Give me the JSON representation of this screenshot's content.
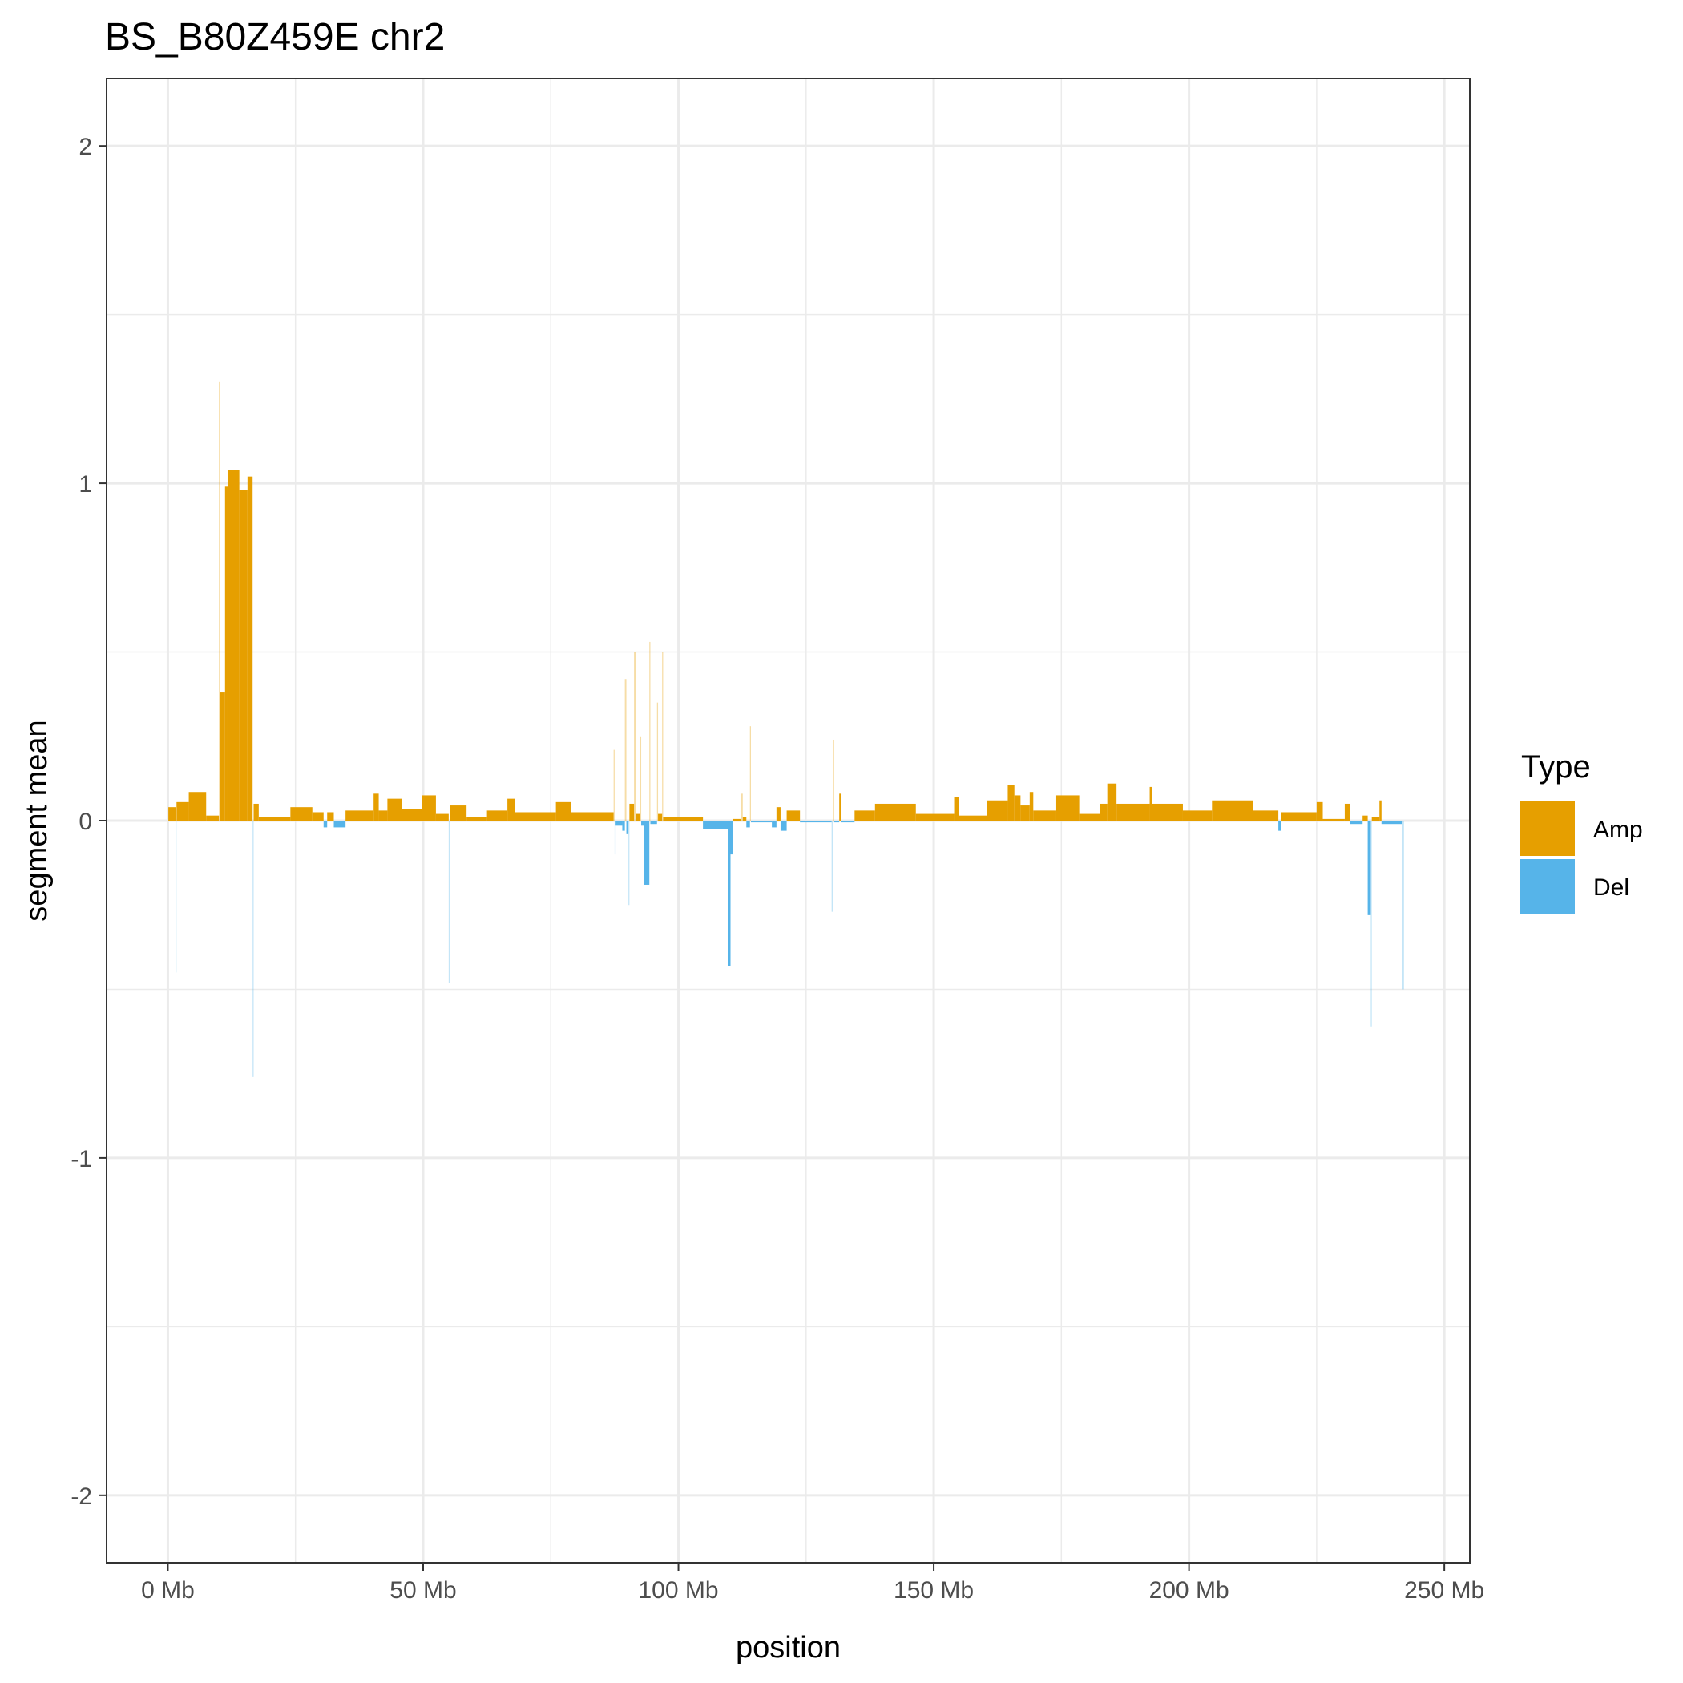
{
  "chart_data": {
    "type": "bar",
    "title": "BS_B80Z459E chr2",
    "xlabel": "position",
    "ylabel": "segment mean",
    "xlim": [
      -12,
      255
    ],
    "ylim": [
      -2.2,
      2.2
    ],
    "x_ticks": [
      0,
      50,
      100,
      150,
      200,
      250
    ],
    "x_tick_labels": [
      "0 Mb",
      "50 Mb",
      "100 Mb",
      "150 Mb",
      "200 Mb",
      "250 Mb"
    ],
    "y_ticks": [
      -2,
      -1,
      0,
      1,
      2
    ],
    "y_tick_labels": [
      "-2",
      "-1",
      "0",
      "1",
      "2"
    ],
    "grid": true,
    "legend": {
      "title": "Type",
      "position": "right",
      "items": [
        {
          "label": "Amp",
          "color": "#E69F00"
        },
        {
          "label": "Del",
          "color": "#56B4E9"
        }
      ]
    },
    "colors": {
      "Amp": "#E69F00",
      "Del": "#56B4E9"
    },
    "segments_note_units": "start and end in Mb, value = segment mean",
    "segments": [
      {
        "start": 0.1,
        "end": 1.5,
        "value": 0.04,
        "type": "Amp"
      },
      {
        "start": 1.5,
        "end": 1.7,
        "value": -0.45,
        "type": "Del"
      },
      {
        "start": 1.7,
        "end": 4.1,
        "value": 0.055,
        "type": "Amp"
      },
      {
        "start": 4.1,
        "end": 7.5,
        "value": 0.085,
        "type": "Amp"
      },
      {
        "start": 7.5,
        "end": 10.0,
        "value": 0.015,
        "type": "Amp"
      },
      {
        "start": 10.0,
        "end": 10.2,
        "value": 1.3,
        "type": "Amp"
      },
      {
        "start": 10.2,
        "end": 11.2,
        "value": 0.38,
        "type": "Amp"
      },
      {
        "start": 11.2,
        "end": 11.7,
        "value": 0.99,
        "type": "Amp"
      },
      {
        "start": 11.7,
        "end": 14.0,
        "value": 1.04,
        "type": "Amp"
      },
      {
        "start": 14.0,
        "end": 15.6,
        "value": 0.98,
        "type": "Amp"
      },
      {
        "start": 15.6,
        "end": 16.6,
        "value": 1.02,
        "type": "Amp"
      },
      {
        "start": 16.6,
        "end": 16.8,
        "value": -0.76,
        "type": "Del"
      },
      {
        "start": 16.8,
        "end": 17.8,
        "value": 0.05,
        "type": "Amp"
      },
      {
        "start": 17.8,
        "end": 24.0,
        "value": 0.01,
        "type": "Amp"
      },
      {
        "start": 24.0,
        "end": 28.3,
        "value": 0.04,
        "type": "Amp"
      },
      {
        "start": 28.3,
        "end": 30.5,
        "value": 0.025,
        "type": "Amp"
      },
      {
        "start": 30.5,
        "end": 31.2,
        "value": -0.02,
        "type": "Del"
      },
      {
        "start": 31.2,
        "end": 32.5,
        "value": 0.025,
        "type": "Amp"
      },
      {
        "start": 32.5,
        "end": 34.8,
        "value": -0.02,
        "type": "Del"
      },
      {
        "start": 34.8,
        "end": 40.3,
        "value": 0.03,
        "type": "Amp"
      },
      {
        "start": 40.3,
        "end": 41.3,
        "value": 0.08,
        "type": "Amp"
      },
      {
        "start": 41.3,
        "end": 43.0,
        "value": 0.03,
        "type": "Amp"
      },
      {
        "start": 43.0,
        "end": 45.8,
        "value": 0.065,
        "type": "Amp"
      },
      {
        "start": 45.8,
        "end": 49.8,
        "value": 0.035,
        "type": "Amp"
      },
      {
        "start": 49.8,
        "end": 52.5,
        "value": 0.075,
        "type": "Amp"
      },
      {
        "start": 52.5,
        "end": 55.0,
        "value": 0.02,
        "type": "Amp"
      },
      {
        "start": 55.0,
        "end": 55.2,
        "value": -0.48,
        "type": "Del"
      },
      {
        "start": 55.2,
        "end": 58.5,
        "value": 0.045,
        "type": "Amp"
      },
      {
        "start": 58.5,
        "end": 62.5,
        "value": 0.01,
        "type": "Amp"
      },
      {
        "start": 62.5,
        "end": 66.5,
        "value": 0.03,
        "type": "Amp"
      },
      {
        "start": 66.5,
        "end": 68.0,
        "value": 0.065,
        "type": "Amp"
      },
      {
        "start": 68.0,
        "end": 76.0,
        "value": 0.025,
        "type": "Amp"
      },
      {
        "start": 76.0,
        "end": 79.0,
        "value": 0.055,
        "type": "Amp"
      },
      {
        "start": 79.0,
        "end": 87.3,
        "value": 0.025,
        "type": "Amp"
      },
      {
        "start": 87.3,
        "end": 87.5,
        "value": 0.21,
        "type": "Amp"
      },
      {
        "start": 87.5,
        "end": 87.7,
        "value": -0.1,
        "type": "Del"
      },
      {
        "start": 87.7,
        "end": 89.0,
        "value": -0.015,
        "type": "Del"
      },
      {
        "start": 89.0,
        "end": 89.5,
        "value": -0.03,
        "type": "Del"
      },
      {
        "start": 89.5,
        "end": 89.8,
        "value": 0.42,
        "type": "Amp"
      },
      {
        "start": 89.8,
        "end": 90.2,
        "value": -0.04,
        "type": "Del"
      },
      {
        "start": 90.2,
        "end": 90.4,
        "value": -0.25,
        "type": "Del"
      },
      {
        "start": 90.4,
        "end": 91.3,
        "value": 0.05,
        "type": "Amp"
      },
      {
        "start": 91.3,
        "end": 91.6,
        "value": 0.5,
        "type": "Amp"
      },
      {
        "start": 91.6,
        "end": 92.5,
        "value": 0.02,
        "type": "Amp"
      },
      {
        "start": 92.5,
        "end": 92.7,
        "value": 0.25,
        "type": "Amp"
      },
      {
        "start": 92.7,
        "end": 93.2,
        "value": -0.015,
        "type": "Del"
      },
      {
        "start": 93.2,
        "end": 94.3,
        "value": -0.19,
        "type": "Del"
      },
      {
        "start": 94.3,
        "end": 94.5,
        "value": 0.53,
        "type": "Amp"
      },
      {
        "start": 94.5,
        "end": 95.8,
        "value": -0.01,
        "type": "Del"
      },
      {
        "start": 95.8,
        "end": 96.0,
        "value": 0.35,
        "type": "Amp"
      },
      {
        "start": 96.0,
        "end": 96.8,
        "value": 0.02,
        "type": "Amp"
      },
      {
        "start": 96.8,
        "end": 97.0,
        "value": 0.5,
        "type": "Amp"
      },
      {
        "start": 97.0,
        "end": 104.8,
        "value": 0.01,
        "type": "Amp"
      },
      {
        "start": 104.8,
        "end": 109.8,
        "value": -0.025,
        "type": "Del"
      },
      {
        "start": 109.8,
        "end": 110.2,
        "value": -0.43,
        "type": "Del"
      },
      {
        "start": 110.2,
        "end": 110.6,
        "value": -0.1,
        "type": "Del"
      },
      {
        "start": 110.6,
        "end": 112.3,
        "value": 0.005,
        "type": "Amp"
      },
      {
        "start": 112.3,
        "end": 112.6,
        "value": 0.08,
        "type": "Amp"
      },
      {
        "start": 112.6,
        "end": 113.3,
        "value": 0.01,
        "type": "Amp"
      },
      {
        "start": 113.3,
        "end": 114.0,
        "value": -0.02,
        "type": "Del"
      },
      {
        "start": 114.0,
        "end": 114.2,
        "value": 0.28,
        "type": "Amp"
      },
      {
        "start": 114.2,
        "end": 118.3,
        "value": -0.005,
        "type": "Del"
      },
      {
        "start": 118.3,
        "end": 119.2,
        "value": -0.02,
        "type": "Del"
      },
      {
        "start": 119.2,
        "end": 120.0,
        "value": 0.04,
        "type": "Amp"
      },
      {
        "start": 120.0,
        "end": 121.2,
        "value": -0.03,
        "type": "Del"
      },
      {
        "start": 121.2,
        "end": 123.8,
        "value": 0.03,
        "type": "Amp"
      },
      {
        "start": 123.8,
        "end": 130.0,
        "value": -0.005,
        "type": "Del"
      },
      {
        "start": 130.0,
        "end": 130.3,
        "value": -0.27,
        "type": "Del"
      },
      {
        "start": 130.3,
        "end": 130.5,
        "value": 0.24,
        "type": "Amp"
      },
      {
        "start": 130.5,
        "end": 131.5,
        "value": -0.005,
        "type": "Del"
      },
      {
        "start": 131.5,
        "end": 131.9,
        "value": 0.08,
        "type": "Amp"
      },
      {
        "start": 131.9,
        "end": 134.5,
        "value": -0.005,
        "type": "Del"
      },
      {
        "start": 134.5,
        "end": 138.5,
        "value": 0.03,
        "type": "Amp"
      },
      {
        "start": 138.5,
        "end": 146.5,
        "value": 0.05,
        "type": "Amp"
      },
      {
        "start": 146.5,
        "end": 154.0,
        "value": 0.02,
        "type": "Amp"
      },
      {
        "start": 154.0,
        "end": 155.0,
        "value": 0.07,
        "type": "Amp"
      },
      {
        "start": 155.0,
        "end": 160.5,
        "value": 0.015,
        "type": "Amp"
      },
      {
        "start": 160.5,
        "end": 164.5,
        "value": 0.06,
        "type": "Amp"
      },
      {
        "start": 164.5,
        "end": 165.8,
        "value": 0.105,
        "type": "Amp"
      },
      {
        "start": 165.8,
        "end": 167.0,
        "value": 0.075,
        "type": "Amp"
      },
      {
        "start": 167.0,
        "end": 168.8,
        "value": 0.045,
        "type": "Amp"
      },
      {
        "start": 168.8,
        "end": 169.5,
        "value": 0.085,
        "type": "Amp"
      },
      {
        "start": 169.5,
        "end": 174.0,
        "value": 0.03,
        "type": "Amp"
      },
      {
        "start": 174.0,
        "end": 178.5,
        "value": 0.075,
        "type": "Amp"
      },
      {
        "start": 178.5,
        "end": 182.5,
        "value": 0.02,
        "type": "Amp"
      },
      {
        "start": 182.5,
        "end": 184.0,
        "value": 0.05,
        "type": "Amp"
      },
      {
        "start": 184.0,
        "end": 185.8,
        "value": 0.11,
        "type": "Amp"
      },
      {
        "start": 185.8,
        "end": 192.3,
        "value": 0.05,
        "type": "Amp"
      },
      {
        "start": 192.3,
        "end": 192.8,
        "value": 0.1,
        "type": "Amp"
      },
      {
        "start": 192.8,
        "end": 198.8,
        "value": 0.05,
        "type": "Amp"
      },
      {
        "start": 198.8,
        "end": 204.5,
        "value": 0.03,
        "type": "Amp"
      },
      {
        "start": 204.5,
        "end": 212.5,
        "value": 0.06,
        "type": "Amp"
      },
      {
        "start": 212.5,
        "end": 217.5,
        "value": 0.03,
        "type": "Amp"
      },
      {
        "start": 217.5,
        "end": 218.0,
        "value": -0.03,
        "type": "Del"
      },
      {
        "start": 218.0,
        "end": 225.0,
        "value": 0.025,
        "type": "Amp"
      },
      {
        "start": 225.0,
        "end": 226.2,
        "value": 0.055,
        "type": "Amp"
      },
      {
        "start": 226.2,
        "end": 230.5,
        "value": 0.005,
        "type": "Amp"
      },
      {
        "start": 230.5,
        "end": 231.5,
        "value": 0.05,
        "type": "Amp"
      },
      {
        "start": 231.5,
        "end": 234.0,
        "value": -0.01,
        "type": "Del"
      },
      {
        "start": 234.0,
        "end": 235.0,
        "value": 0.015,
        "type": "Amp"
      },
      {
        "start": 235.0,
        "end": 235.6,
        "value": -0.28,
        "type": "Del"
      },
      {
        "start": 235.6,
        "end": 235.8,
        "value": -0.61,
        "type": "Del"
      },
      {
        "start": 235.8,
        "end": 237.3,
        "value": 0.01,
        "type": "Amp"
      },
      {
        "start": 237.3,
        "end": 237.7,
        "value": 0.06,
        "type": "Amp"
      },
      {
        "start": 237.7,
        "end": 241.8,
        "value": -0.01,
        "type": "Del"
      },
      {
        "start": 241.8,
        "end": 242.1,
        "value": -0.5,
        "type": "Del"
      }
    ]
  }
}
